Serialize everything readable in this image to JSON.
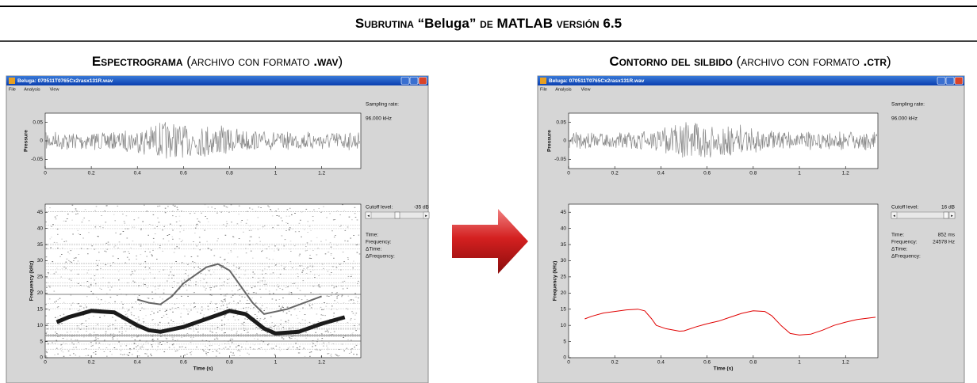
{
  "title": [
    {
      "text": "Subrutina ",
      "sc": true
    },
    {
      "text": "“Beluga”"
    },
    {
      "text": " de ",
      "sc": true
    },
    {
      "text": "MATLAB"
    },
    {
      "text": " versión 6.5",
      "sc": true
    }
  ],
  "panels": [
    {
      "heading": [
        {
          "text": "Espectrograma",
          "bold": true,
          "sc": true
        },
        {
          "text": " (archivo con formato ",
          "sc": true
        },
        {
          "text": ".wav",
          "bold": true,
          "sc": true
        },
        {
          "text": ")"
        }
      ],
      "window": {
        "title": "Beluga: 070511T0765Cx2rasx131R.wav",
        "menu": [
          "File",
          "Analysis",
          "View"
        ],
        "waveform": {
          "ylabel": "Pressure",
          "ylim": [
            -0.075,
            0.075
          ],
          "yticks": [
            0.05,
            0,
            -0.05
          ],
          "xlim": [
            0,
            1.37
          ],
          "xticks": [
            0,
            0.2,
            0.4,
            0.6,
            0.8,
            1,
            1.2
          ],
          "sampling_label": "Sampling rate:",
          "sampling_value": "96.000 kHz"
        },
        "spectrogram": {
          "type": "spectrogram",
          "xlabel": "Time (s)",
          "ylabel": "Frequency (kHz)",
          "xlim": [
            0,
            1.37
          ],
          "ylim": [
            0,
            47.5
          ],
          "xticks": [
            0,
            0.2,
            0.4,
            0.6,
            0.8,
            1,
            1.2
          ],
          "yticks": [
            0,
            5,
            10,
            15,
            20,
            25,
            30,
            35,
            40,
            45
          ],
          "cutoff_label": "Cutoff level:",
          "cutoff_value": "-35 dB",
          "readouts": [
            {
              "label": "Time:"
            },
            {
              "label": "Frequency:"
            },
            {
              "label": "ΔTime:"
            },
            {
              "label": "ΔFrequency:"
            }
          ],
          "series": [
            {
              "color": "#1a1a1a",
              "width": 5,
              "x": [
                0.05,
                0.1,
                0.2,
                0.3,
                0.35,
                0.4,
                0.45,
                0.5,
                0.6,
                0.7,
                0.8,
                0.87,
                0.95,
                1.0,
                1.1,
                1.2,
                1.3
              ],
              "y": [
                11,
                12.5,
                14.5,
                14,
                12,
                10,
                8.5,
                8,
                9.5,
                12,
                14.5,
                13.5,
                9,
                7.5,
                8,
                10.5,
                12.5
              ]
            },
            {
              "color": "#666666",
              "width": 2,
              "x": [
                0.4,
                0.45,
                0.5,
                0.55,
                0.6,
                0.7,
                0.75,
                0.8,
                0.9,
                0.95,
                1.05,
                1.2
              ],
              "y": [
                18,
                17,
                16.5,
                19,
                23,
                28,
                29,
                27,
                17,
                13.5,
                15,
                19
              ]
            }
          ]
        }
      }
    },
    {
      "heading": [
        {
          "text": "Contorno del silbido",
          "bold": true,
          "sc": true
        },
        {
          "text": " (archivo con formato ",
          "sc": true
        },
        {
          "text": ".ctr",
          "bold": true,
          "sc": true
        },
        {
          "text": ")"
        }
      ],
      "window": {
        "title": "Beluga: 070511T0765Cx2rasx131R.wav",
        "menu": [
          "File",
          "Analysis",
          "View"
        ],
        "waveform": {
          "ylabel": "Pressure",
          "ylim": [
            -0.075,
            0.075
          ],
          "yticks": [
            0.05,
            0,
            -0.05
          ],
          "xlim": [
            0,
            1.34
          ],
          "xticks": [
            0,
            0.2,
            0.4,
            0.6,
            0.8,
            1,
            1.2
          ],
          "sampling_label": "Sampling rate:",
          "sampling_value": "96.000 kHz"
        },
        "spectrogram": {
          "type": "contour",
          "xlabel": "Time (s)",
          "ylabel": "Frequency (kHz)",
          "xlim": [
            0,
            1.34
          ],
          "ylim": [
            0,
            47.5
          ],
          "xticks": [
            0,
            0.2,
            0.4,
            0.6,
            0.8,
            1,
            1.2
          ],
          "yticks": [
            0,
            5,
            10,
            15,
            20,
            25,
            30,
            35,
            40,
            45
          ],
          "cutoff_label": "Cutoff level:",
          "cutoff_value": "16 dB",
          "readouts": [
            {
              "label": "Time:",
              "value": "852 ms"
            },
            {
              "label": "Frequency:",
              "value": "24578 Hz"
            },
            {
              "label": "ΔTime:"
            },
            {
              "label": "ΔFrequency:"
            }
          ],
          "series": [
            {
              "color": "#e00000",
              "width": 1,
              "x": [
                0.07,
                0.1,
                0.15,
                0.2,
                0.25,
                0.3,
                0.33,
                0.36,
                0.38,
                0.42,
                0.48,
                0.5,
                0.55,
                0.6,
                0.65,
                0.7,
                0.75,
                0.8,
                0.85,
                0.88,
                0.92,
                0.96,
                1.0,
                1.05,
                1.1,
                1.15,
                1.2,
                1.25,
                1.33
              ],
              "y": [
                12,
                12.8,
                13.8,
                14.3,
                14.8,
                15,
                14.5,
                12,
                10,
                9,
                8.2,
                8.3,
                9.5,
                10.5,
                11.3,
                12.5,
                13.7,
                14.5,
                14.3,
                13,
                10,
                7.5,
                7,
                7.3,
                8.5,
                10,
                11,
                11.8,
                12.5
              ]
            }
          ]
        }
      }
    }
  ]
}
